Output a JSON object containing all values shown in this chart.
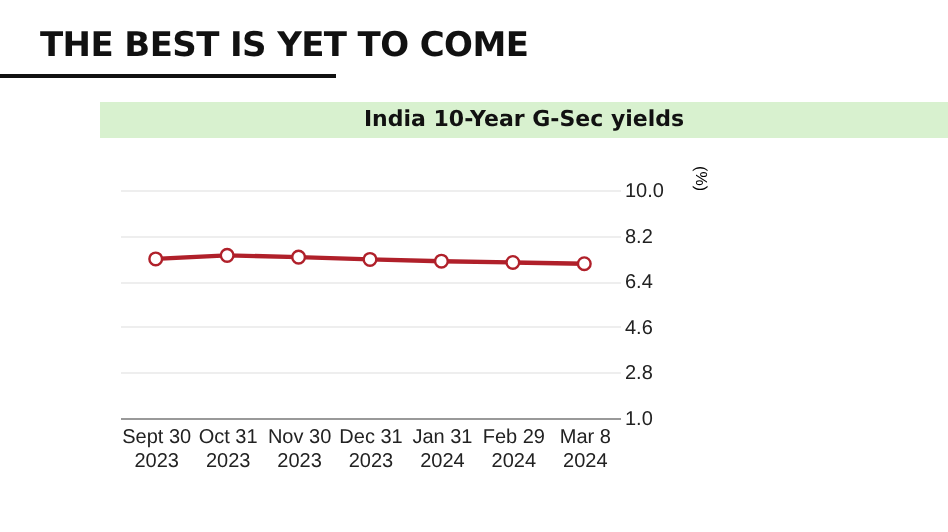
{
  "chart_data": {
    "type": "line",
    "title": "THE BEST IS YET TO COME",
    "subtitle": "India 10-Year G-Sec yields",
    "ylabel": "(%)",
    "categories": [
      "Sept 30 2023",
      "Oct 31 2023",
      "Nov 30 2023",
      "Dec 31 2023",
      "Jan 31 2024",
      "Feb 29 2024",
      "Mar 8 2024"
    ],
    "series": [
      {
        "color": "#b0202a",
        "values": [
          7.28,
          7.42,
          7.35,
          7.26,
          7.19,
          7.14,
          7.09
        ]
      }
    ],
    "ylim": [
      1.0,
      10.0
    ],
    "yticks": [
      {
        "value": 1.0,
        "label": "1.0"
      },
      2.8,
      4.6,
      6.4,
      8.2,
      {
        "value": 10.0,
        "label": "10.0"
      }
    ],
    "grid": "y",
    "marker": "circle",
    "line_style": "solid",
    "legend": false
  }
}
